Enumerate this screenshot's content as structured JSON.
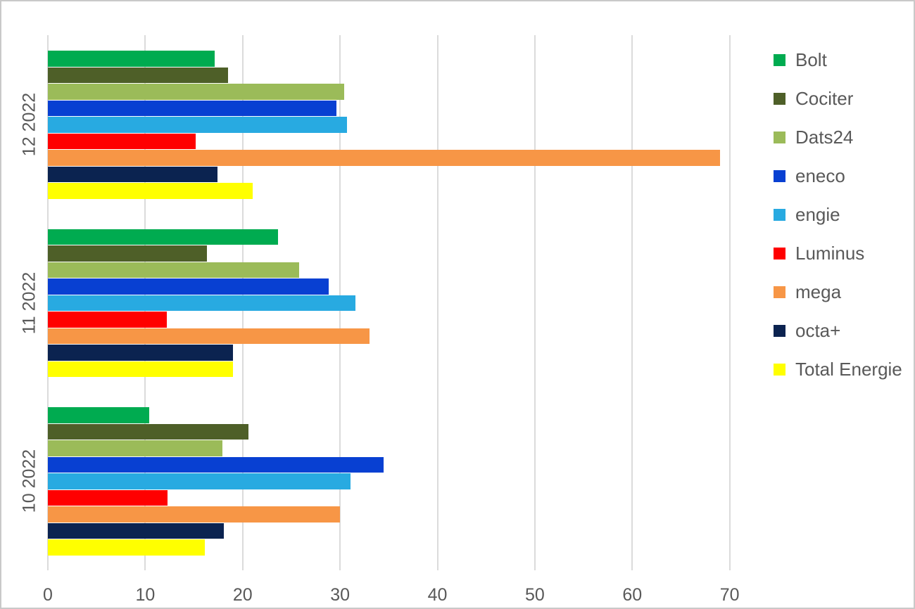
{
  "chart_data": {
    "type": "bar",
    "orientation": "horizontal",
    "title": "",
    "xlabel": "",
    "ylabel": "",
    "categories": [
      "12 2022",
      "11 2022",
      "10 2022"
    ],
    "series": [
      {
        "name": "Bolt",
        "color": "#00AB50",
        "values": [
          17.1,
          23.6,
          10.4
        ]
      },
      {
        "name": "Cociter",
        "color": "#4E5F28",
        "values": [
          18.5,
          16.3,
          20.6
        ]
      },
      {
        "name": "Dats24",
        "color": "#9BBB59",
        "values": [
          30.4,
          25.8,
          17.9
        ]
      },
      {
        "name": "eneco",
        "color": "#0840D2",
        "values": [
          29.6,
          28.8,
          34.5
        ]
      },
      {
        "name": "engie",
        "color": "#28AAE1",
        "values": [
          30.7,
          31.6,
          31.1
        ]
      },
      {
        "name": "Luminus",
        "color": "#FF0000",
        "values": [
          15.2,
          12.2,
          12.3
        ]
      },
      {
        "name": "mega",
        "color": "#F79646",
        "values": [
          69.0,
          33.0,
          30.0
        ]
      },
      {
        "name": "octa+",
        "color": "#0B2350",
        "values": [
          17.4,
          19.0,
          18.1
        ]
      },
      {
        "name": "Total Energie",
        "color": "#FFFF00",
        "values": [
          21.0,
          19.0,
          16.1
        ]
      }
    ],
    "x_ticks": [
      "0",
      "10",
      "20",
      "30",
      "40",
      "50",
      "60",
      "70"
    ],
    "xlim": [
      0,
      74
    ],
    "grid": true,
    "legend_position": "right"
  },
  "colors": {
    "grid": "#dbdbdb",
    "text": "#595959",
    "background": "#ffffff",
    "frame_border": "#c9c9c9"
  }
}
